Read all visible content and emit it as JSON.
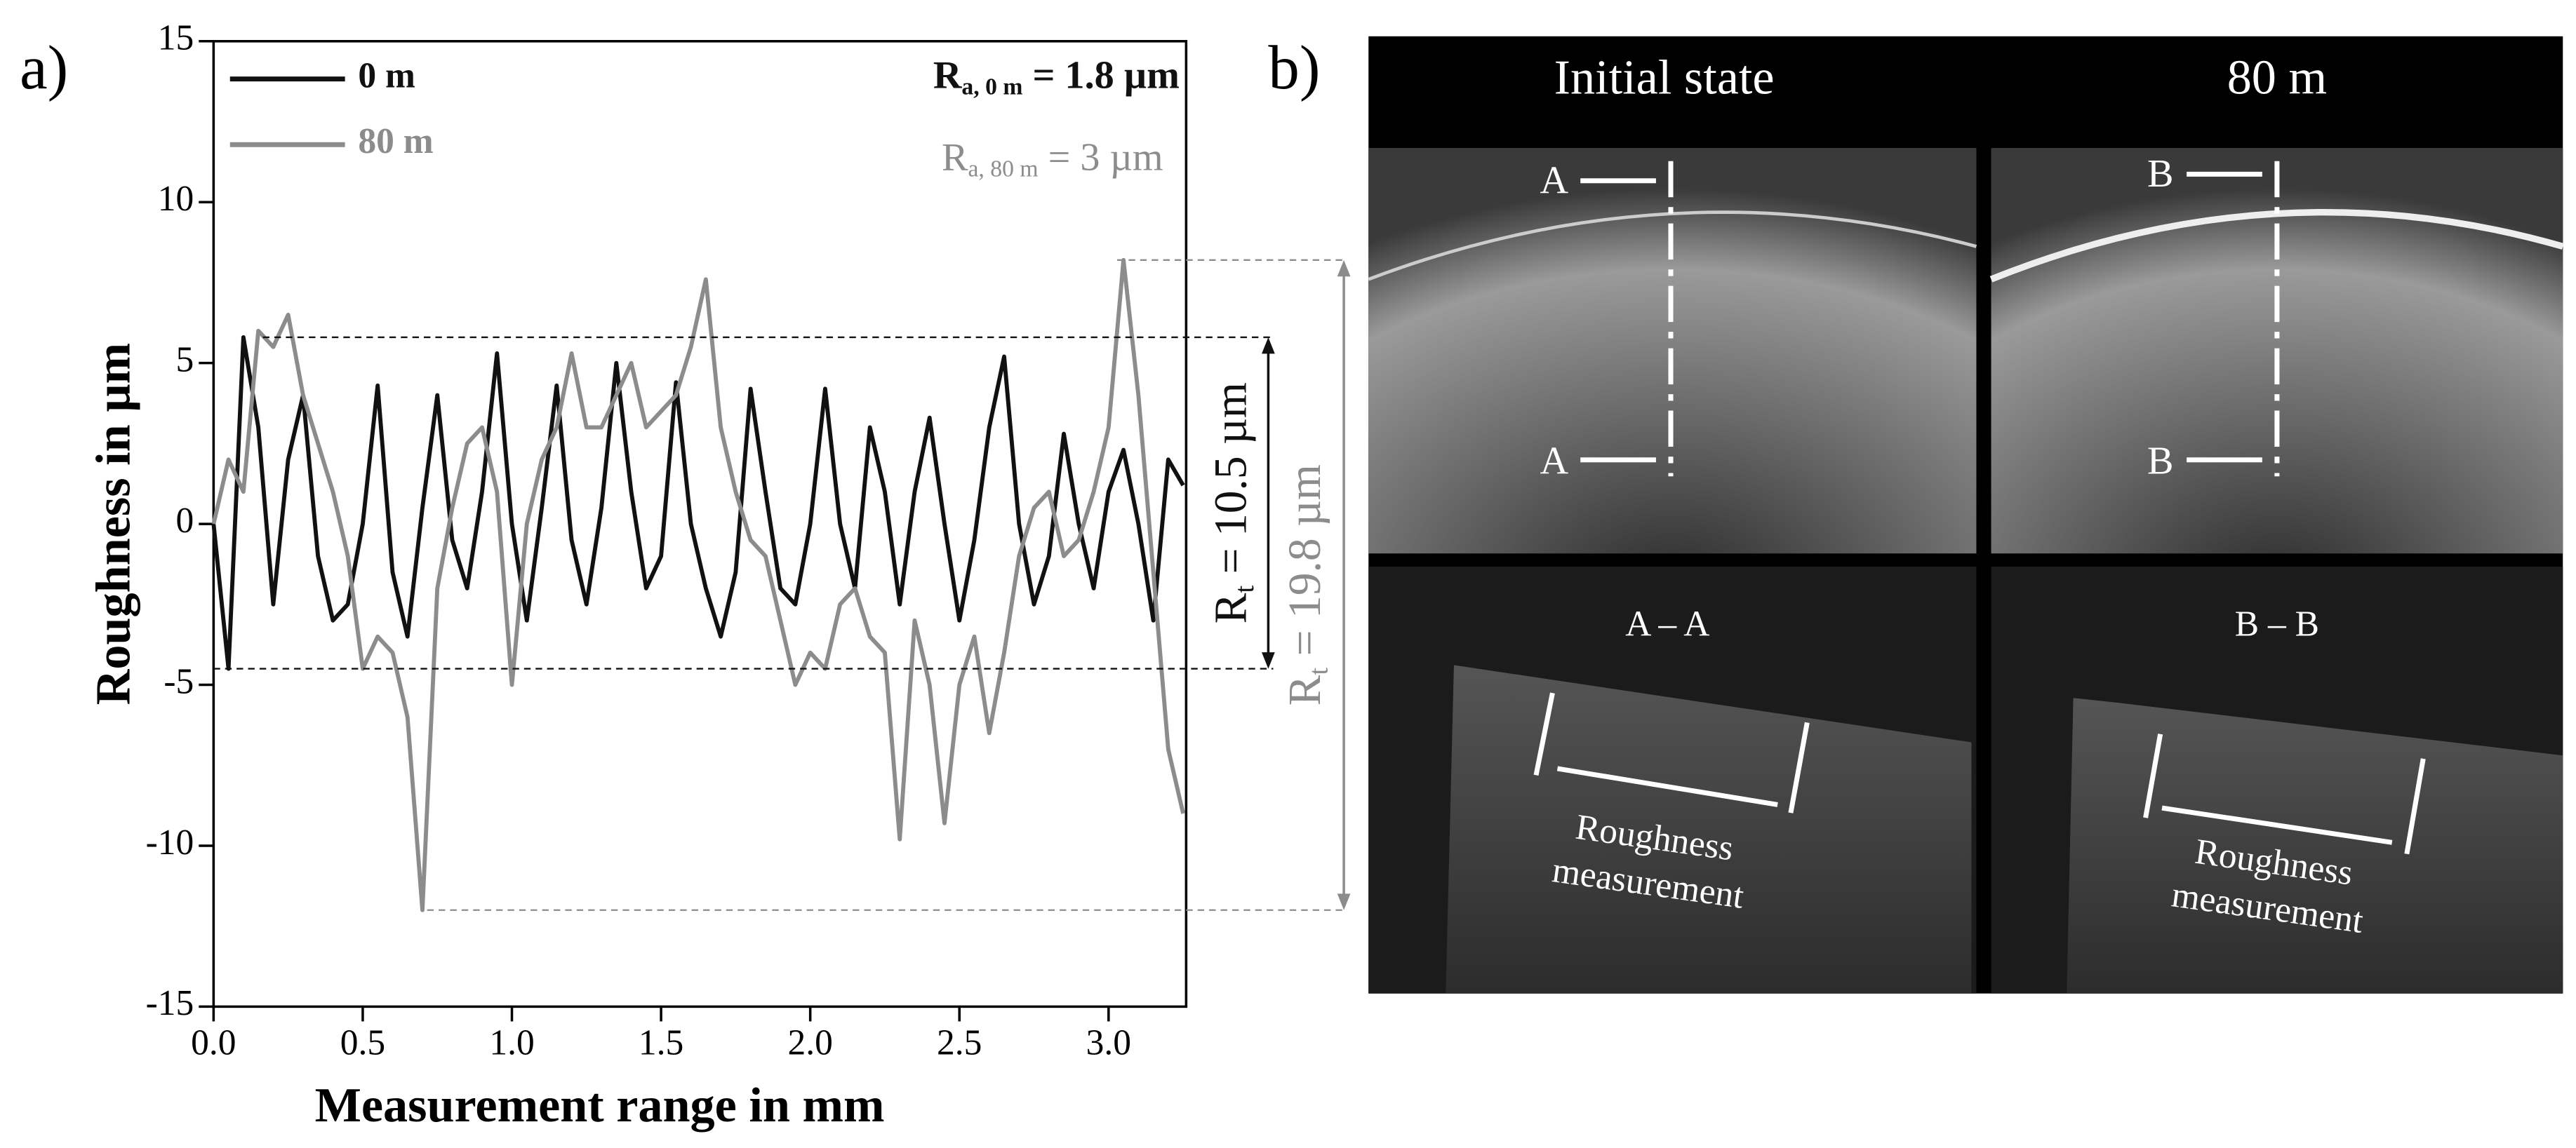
{
  "panel_labels": [
    "a)",
    "b)"
  ],
  "chart_data": {
    "type": "line",
    "xlabel": "Measurement range in mm",
    "ylabel": "Roughness in µm",
    "x": [
      0,
      0.05,
      0.1,
      0.15,
      0.2,
      0.25,
      0.3,
      0.35,
      0.4,
      0.45,
      0.5,
      0.55,
      0.6,
      0.65,
      0.7,
      0.75,
      0.8,
      0.85,
      0.9,
      0.95,
      1,
      1.05,
      1.1,
      1.15,
      1.2,
      1.25,
      1.3,
      1.35,
      1.4,
      1.45,
      1.5,
      1.55,
      1.6,
      1.65,
      1.7,
      1.75,
      1.8,
      1.85,
      1.9,
      1.95,
      2,
      2.05,
      2.1,
      2.15,
      2.2,
      2.25,
      2.3,
      2.35,
      2.4,
      2.45,
      2.5,
      2.55,
      2.6,
      2.65,
      2.7,
      2.75,
      2.8,
      2.85,
      2.9,
      2.95,
      3,
      3.05,
      3.1,
      3.15,
      3.2,
      3.25
    ],
    "series": [
      {
        "name": "0 m",
        "color": "#111111",
        "values": [
          0,
          -4.5,
          5.8,
          3,
          -2.5,
          2,
          4,
          -1,
          -3,
          -2.5,
          0,
          4.3,
          -1.5,
          -3.5,
          0.5,
          4,
          -0.5,
          -2,
          1,
          5.3,
          0,
          -3,
          0.5,
          4.3,
          -0.5,
          -2.5,
          0.5,
          5,
          1,
          -2,
          -1,
          4.4,
          0,
          -2,
          -3.5,
          -1.5,
          4.2,
          1,
          -2,
          -2.5,
          0,
          4.2,
          0,
          -2,
          3,
          1,
          -2.5,
          1,
          3.3,
          0,
          -3,
          -0.5,
          3,
          5.2,
          0,
          -2.5,
          -1,
          2.8,
          0,
          -2,
          1,
          2.3,
          0,
          -3,
          2,
          1.2
        ]
      },
      {
        "name": "80 m",
        "color": "#8c8c8c",
        "values": [
          0,
          2,
          1,
          6,
          5.5,
          6.5,
          4,
          2.5,
          1,
          -1,
          -4.5,
          -3.5,
          -4,
          -6,
          -12,
          -2,
          0.5,
          2.5,
          3,
          1,
          -5,
          0,
          2,
          3,
          5.3,
          3,
          3,
          4,
          5,
          3,
          3.5,
          4,
          5.5,
          7.6,
          3,
          1,
          -0.5,
          -1,
          -3,
          -5,
          -4,
          -4.5,
          -2.5,
          -2,
          -3.5,
          -4,
          -9.8,
          -3,
          -5,
          -9.3,
          -5,
          -3.5,
          -6.5,
          -4,
          -1,
          0.5,
          1,
          -1,
          -0.5,
          1,
          3,
          8.2,
          4,
          -1.5,
          -7,
          -9
        ]
      }
    ],
    "xlim": [
      0,
      3.26
    ],
    "ylim": [
      -15,
      15
    ],
    "xticks": [
      {
        "value": 0,
        "label": "0.0"
      },
      0.5,
      {
        "value": 1,
        "label": "1.0"
      },
      1.5,
      {
        "value": 2,
        "label": "2.0"
      },
      2.5,
      {
        "value": 3,
        "label": "3.0"
      }
    ],
    "yticks": [
      -15,
      -10,
      -5,
      0,
      5,
      10,
      15
    ],
    "legend": "upper left",
    "annotations": [
      {
        "symbol": "R",
        "subscript": "a, 0 m",
        "text": " = 1.8 µm",
        "color": "#111111"
      },
      {
        "symbol": "R",
        "subscript": "a, 80 m",
        "text": " = 3 µm",
        "color": "#8c8c8c"
      },
      {
        "symbol": "R",
        "subscript": "t",
        "text": " = 10.5 µm",
        "color": "#111111"
      },
      {
        "symbol": "R",
        "subscript": "t",
        "text": " = 19.8 µm",
        "color": "#8c8c8c"
      }
    ]
  },
  "panel_b": {
    "headers": [
      "Initial state",
      "80 m"
    ],
    "markers": [
      "A",
      "A",
      "B",
      "B"
    ],
    "sections": [
      "A – A",
      "B – B"
    ],
    "measurement_labels": [
      [
        "Roughness",
        "measurement"
      ],
      [
        "Roughness",
        "measurement"
      ]
    ]
  }
}
